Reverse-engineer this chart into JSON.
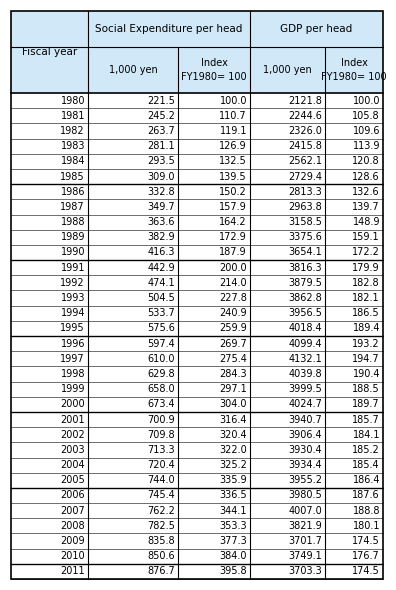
{
  "header_bg": "#d0e8f8",
  "col2_header": "Social Expenditure per head",
  "col3_header": "GDP per head",
  "col1_header": "Fiscal year",
  "subheaders": [
    "1,000 yen",
    "Index\nFY1980= 100",
    "1,000 yen",
    "Index\nFY1980= 100"
  ],
  "years": [
    1980,
    1981,
    1982,
    1983,
    1984,
    1985,
    1986,
    1987,
    1988,
    1989,
    1990,
    1991,
    1992,
    1993,
    1994,
    1995,
    1996,
    1997,
    1998,
    1999,
    2000,
    2001,
    2002,
    2003,
    2004,
    2005,
    2006,
    2007,
    2008,
    2009,
    2010,
    2011
  ],
  "soc_yen": [
    221.5,
    245.2,
    263.7,
    281.1,
    293.5,
    309.0,
    332.8,
    349.7,
    363.6,
    382.9,
    416.3,
    442.9,
    474.1,
    504.5,
    533.7,
    575.6,
    597.4,
    610.0,
    629.8,
    658.0,
    673.4,
    700.9,
    709.8,
    713.3,
    720.4,
    744.0,
    745.4,
    762.2,
    782.5,
    835.8,
    850.6,
    876.7
  ],
  "soc_idx": [
    100.0,
    110.7,
    119.1,
    126.9,
    132.5,
    139.5,
    150.2,
    157.9,
    164.2,
    172.9,
    187.9,
    200.0,
    214.0,
    227.8,
    240.9,
    259.9,
    269.7,
    275.4,
    284.3,
    297.1,
    304.0,
    316.4,
    320.4,
    322.0,
    325.2,
    335.9,
    336.5,
    344.1,
    353.3,
    377.3,
    384.0,
    395.8
  ],
  "gdp_yen": [
    2121.8,
    2244.6,
    2326.0,
    2415.8,
    2562.1,
    2729.4,
    2813.3,
    2963.8,
    3158.5,
    3375.6,
    3654.1,
    3816.3,
    3879.5,
    3862.8,
    3956.5,
    4018.4,
    4099.4,
    4132.1,
    4039.8,
    3999.5,
    4024.7,
    3940.7,
    3906.4,
    3930.4,
    3934.4,
    3955.2,
    3980.5,
    4007.0,
    3821.9,
    3701.7,
    3749.1,
    3703.3
  ],
  "gdp_idx": [
    100.0,
    105.8,
    109.6,
    113.9,
    120.8,
    128.6,
    132.6,
    139.7,
    148.9,
    159.1,
    172.2,
    179.9,
    182.8,
    182.1,
    186.5,
    189.4,
    193.2,
    194.7,
    190.4,
    188.5,
    189.7,
    185.7,
    184.1,
    185.2,
    185.4,
    186.4,
    187.6,
    188.8,
    180.1,
    174.5,
    176.7,
    174.5
  ],
  "group_breaks": [
    1985,
    1990,
    1995,
    2000,
    2005,
    2010
  ],
  "bg_color": "#ffffff",
  "border_color": "#000000",
  "text_color": "#000000"
}
